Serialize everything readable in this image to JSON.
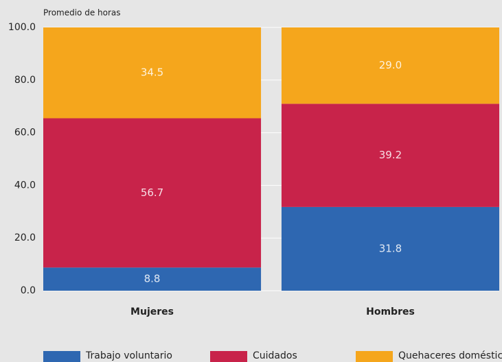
{
  "chart_data": {
    "type": "stacked_bar",
    "y_axis_label": "Promedio de horas",
    "categories": [
      "Mujeres",
      "Hombres"
    ],
    "series": [
      {
        "name": "Trabajo voluntario",
        "color": "#2e67b1",
        "values": [
          8.8,
          31.8
        ],
        "value_labels": [
          "8.8",
          "31.8"
        ]
      },
      {
        "name": "Cuidados",
        "color": "#c8234a",
        "values": [
          56.7,
          39.2
        ],
        "value_labels": [
          "56.7",
          "39.2"
        ]
      },
      {
        "name": "Quehaceres domésticos",
        "color": "#f5a61c",
        "values": [
          34.5,
          29.0
        ],
        "value_labels": [
          "34.5",
          "29.0"
        ]
      }
    ],
    "ylim": [
      0,
      100
    ],
    "yticks": [
      {
        "value": 0,
        "label": "0.0"
      },
      {
        "value": 20,
        "label": "20.0"
      },
      {
        "value": 40,
        "label": "40.0"
      },
      {
        "value": 60,
        "label": "60.0"
      },
      {
        "value": 80,
        "label": "80.0"
      },
      {
        "value": 100,
        "label": "100.0"
      }
    ],
    "grid": true,
    "legend": "bottom"
  }
}
